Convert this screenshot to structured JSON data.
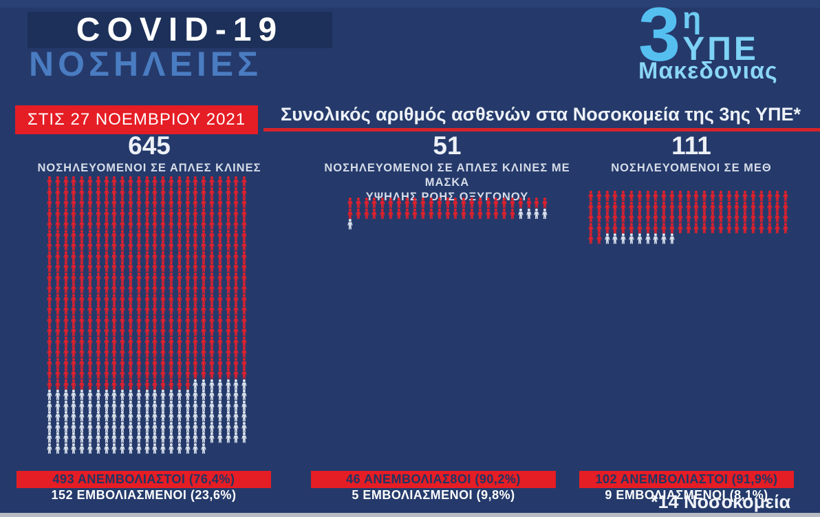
{
  "header": {
    "title_line1": "COVID-19",
    "title_line2": "ΝΟΣΗΛΕΙΕΣ",
    "date_banner": "ΣΤΙΣ 27 ΝΟΕΜΒΡΙΟΥ 2021",
    "main_title": "Συνολικός αριθμός ασθενών στα Νοσοκομεία της 3ης ΥΠΕ*"
  },
  "logo": {
    "big_digit": "3",
    "superscript": "η",
    "mid": "ΥΠΕ",
    "bottom": "Μακεδονιας"
  },
  "columns": [
    {
      "total": "645",
      "label_lines": [
        "ΝΟΣΗΛΕΥΟΜΕΝΟΙ ΣΕ ΑΠΛΕΣ ΚΛΙΝΕΣ"
      ],
      "grid": {
        "columns": 25,
        "red": 493,
        "white": 152
      },
      "banner_red": "493 ΑΝΕΜΒΟΛΙΑΣΤΟΙ (76,4%)",
      "banner_white": "152 ΕΜΒΟΛΙΑΣΜΕΝΟΙ (23,6%)"
    },
    {
      "total": "51",
      "label_lines": [
        "ΝΟΣΗΛΕΥΟΜΕΝΟΙ ΣΕ ΑΠΛΕΣ ΚΛΙΝΕΣ ΜΕ ΜΑΣΚΑ",
        "ΥΨΗΛΗΣ ΡΟΗΣ ΟΞΥΓΟΝΟΥ"
      ],
      "grid": {
        "columns": 25,
        "red": 46,
        "white": 5
      },
      "banner_red": "46 ΑΝΕΜΒΟΛΙΑΣ8ΟΙ (90,2%)",
      "banner_white": "5 ΕΜΒΟΛΙΑΣΜΕΝΟΙ (9,8%)"
    },
    {
      "total": "111",
      "label_lines": [
        "ΝΟΣΗΛΕΥΟΜΕΝΟΙ ΣΕ ΜΕΘ"
      ],
      "grid": {
        "columns": 25,
        "red": 102,
        "white": 9
      },
      "banner_red": "102 ΑΝΕΜΒΟΛΙΑΣΤΟΙ (91,9%)",
      "banner_white": "9 ΕΜΒΟΛΙΑΣΜΕΝΟΙ (8,1%)"
    }
  ],
  "footnote": "*14 Νοσοκομεία",
  "colors": {
    "background": "#253a6b",
    "covid_box": "#1c3059",
    "accent_blue": "#4a7cc1",
    "logo_blue": "#5fc4f0",
    "red": "#e51d25",
    "icon_red": "#e3202b",
    "icon_white": "#dde4ee",
    "banner_text_dark": "#1e3664",
    "bottom_strip": "#b7bbc3"
  },
  "chart_data": {
    "type": "pictogram",
    "title": "Συνολικός αριθμός ασθενών στα Νοσοκομεία της 3ης ΥΠΕ*",
    "date_label": "ΣΤΙΣ 27 ΝΟΕΜΒΡΙΟΥ 2021",
    "categories": [
      "ΝΟΣΗΛΕΥΟΜΕΝΟΙ ΣΕ ΑΠΛΕΣ ΚΛΙΝΕΣ",
      "ΝΟΣΗΛΕΥΟΜΕΝΟΙ ΣΕ ΑΠΛΕΣ ΚΛΙΝΕΣ ΜΕ ΜΑΣΚΑ ΥΨΗΛΗΣ ΡΟΗΣ ΟΞΥΓΟΝΟΥ",
      "ΝΟΣΗΛΕΥΟΜΕΝΟΙ ΣΕ ΜΕΘ"
    ],
    "totals": [
      645,
      51,
      111
    ],
    "series": [
      {
        "name": "ΑΝΕΜΒΟΛΙΑΣΤΟΙ",
        "values": [
          493,
          46,
          102
        ],
        "percents": [
          "76,4%",
          "90,2%",
          "91,9%"
        ],
        "color": "#e3202b"
      },
      {
        "name": "ΕΜΒΟΛΙΑΣΜΕΝΟΙ",
        "values": [
          152,
          5,
          9
        ],
        "percents": [
          "23,6%",
          "9,8%",
          "8,1%"
        ],
        "color": "#dde4ee"
      }
    ],
    "unit": "1 icon = 1 patient",
    "footnote": "*14 Νοσοκομεία"
  }
}
